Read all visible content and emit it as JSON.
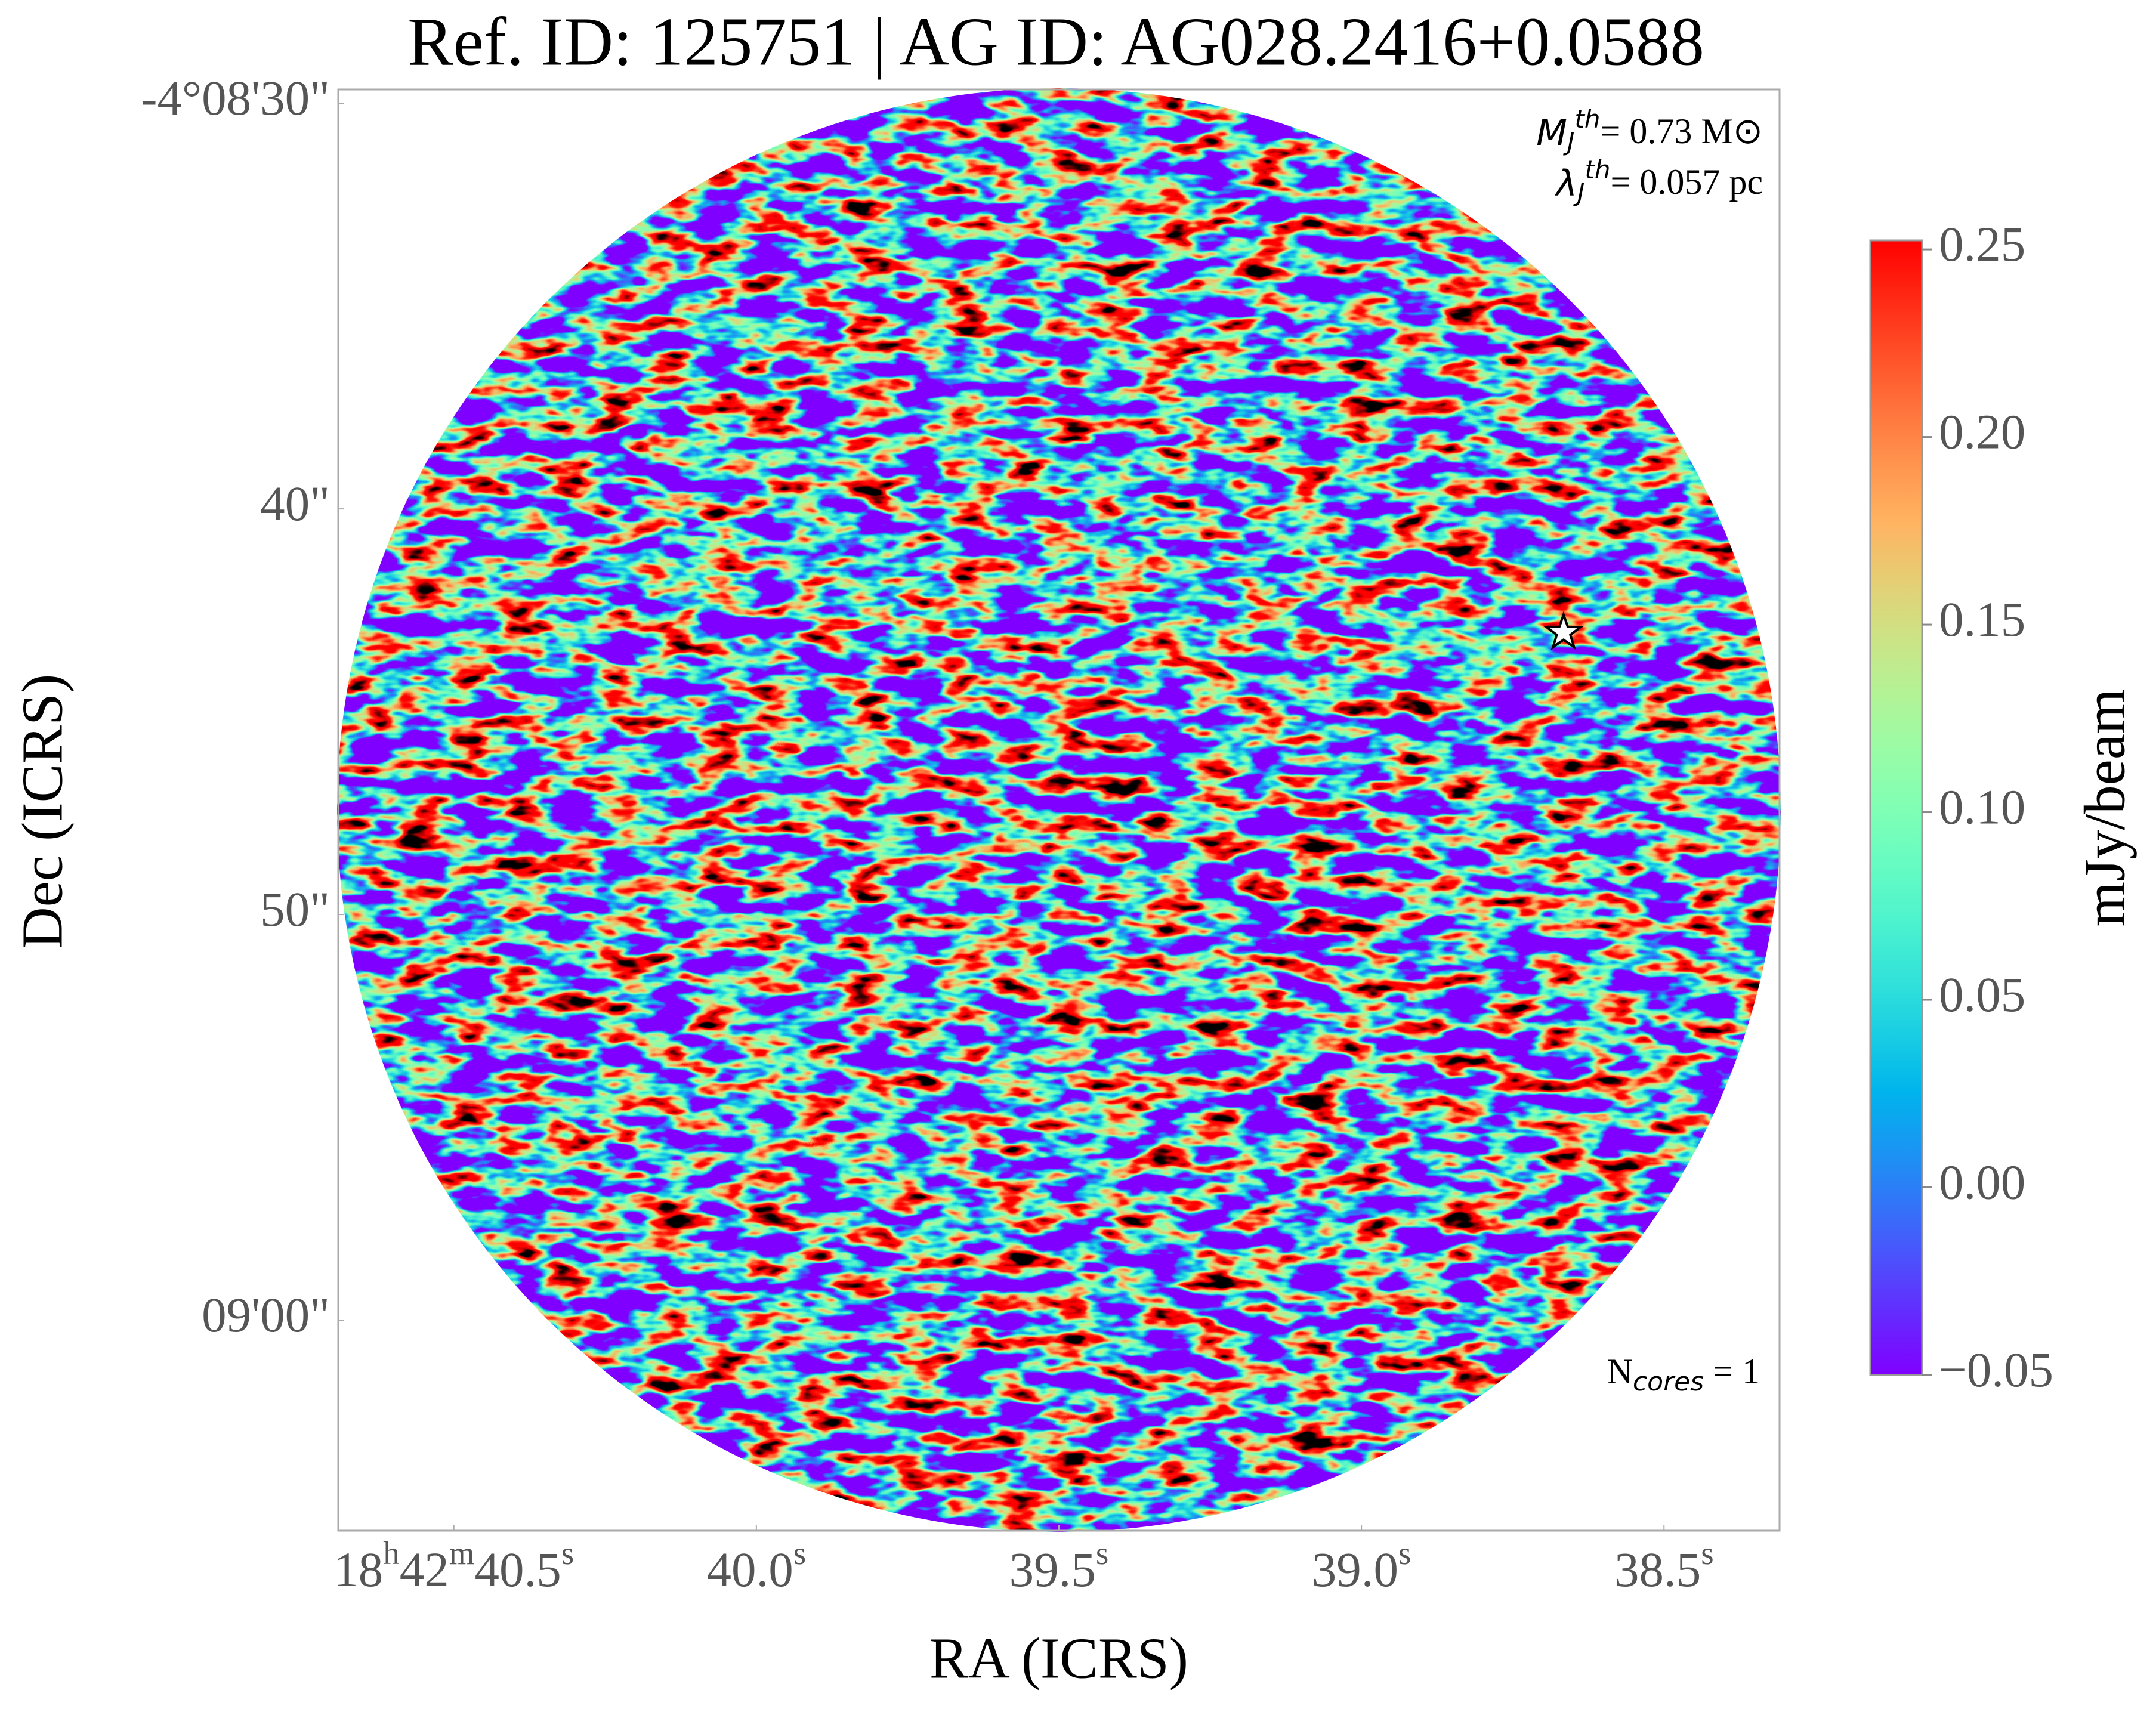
{
  "chart_data": {
    "type": "heatmap",
    "title": "Ref. ID: 125751 | AG ID: AG028.2416+0.0588",
    "x_label": "RA (ICRS)",
    "y_label": "Dec (ICRS)",
    "colorbar_label": "mJy/beam",
    "colormap": "rainbow",
    "xlim": [
      40.691,
      38.309
    ],
    "xticks": [
      {
        "value": 40.5,
        "label": "18h42m40.5s"
      },
      {
        "value": 40.0,
        "label": "40.0s"
      },
      {
        "value": 39.5,
        "label": "39.5s"
      },
      {
        "value": 39.0,
        "label": "39.0s"
      },
      {
        "value": 38.5,
        "label": "38.5s"
      }
    ],
    "ylim": [
      65.19,
      29.66
    ],
    "yticks": [
      {
        "value": 30,
        "label": "-4°08'30\""
      },
      {
        "value": 40,
        "label": "40\""
      },
      {
        "value": 50,
        "label": "50\""
      },
      {
        "value": 60,
        "label": "09'00\""
      }
    ],
    "clim": [
      -0.05,
      0.2524
    ],
    "cticks": [
      {
        "value": -0.05,
        "label": "−0.05"
      },
      {
        "value": 0,
        "label": "0.00"
      },
      0.05,
      {
        "value": 0.1,
        "label": "0.10"
      },
      0.15,
      {
        "value": 0.2,
        "label": "0.20"
      },
      0.25
    ],
    "cores": {
      "x": [
        38.666
      ],
      "y": [
        43.05
      ]
    },
    "annotations": [
      {
        "symbol": "M",
        "sub": "J",
        "sup": "th",
        "text": "= 0.73 M⊙"
      },
      {
        "symbol": "λ",
        "sub": "J",
        "sup": "th",
        "text": "= 0.057 pc"
      }
    ],
    "core_count": {
      "symbol": "N",
      "sub": "cores",
      "text": " = 1"
    }
  }
}
